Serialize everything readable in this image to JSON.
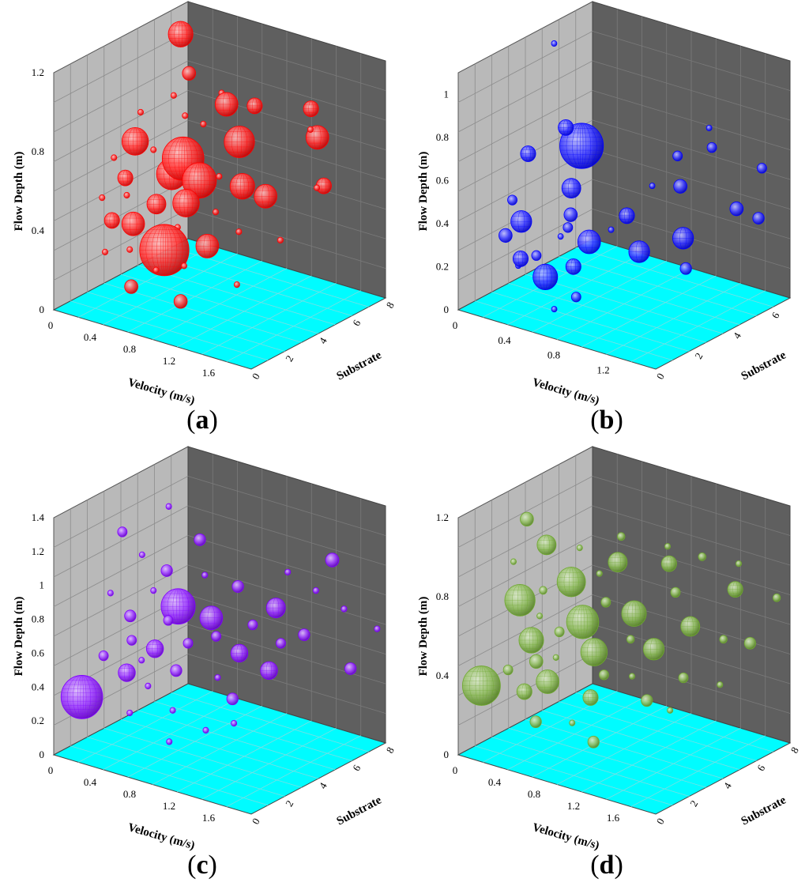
{
  "chart_data": [
    {
      "type": "scatter",
      "panel": "a",
      "caption_letter": "a",
      "bubble_color": "#ff0000",
      "xlabel": "Velocity (m/s)",
      "ylabel": "Flow Depth (m)",
      "zlabel": "Substrate",
      "x_range": [
        0,
        2.0
      ],
      "y_range": [
        0,
        1.2
      ],
      "z_range": [
        0,
        8
      ],
      "x_ticks": [
        "0",
        "0.4",
        "0.8",
        "1.2",
        "1.6"
      ],
      "y_ticks": [
        "0",
        "0.4",
        "0.8",
        "1.2"
      ],
      "z_ticks": [
        "0",
        "2",
        "4",
        "6",
        "8"
      ],
      "points": [
        {
          "v": 0.35,
          "d": 1.2,
          "s": 5.5,
          "r": 1.3
        },
        {
          "v": 0.52,
          "d": 1.05,
          "s": 5.0,
          "r": 0.7
        },
        {
          "v": 0.95,
          "d": 0.4,
          "s": 1.0,
          "r": 2.6
        },
        {
          "v": 0.8,
          "d": 0.75,
          "s": 3.0,
          "r": 2.2
        },
        {
          "v": 1.05,
          "d": 0.7,
          "s": 2.5,
          "r": 1.8
        },
        {
          "v": 0.6,
          "d": 0.62,
          "s": 3.5,
          "r": 1.6
        },
        {
          "v": 1.2,
          "d": 0.85,
          "s": 4.0,
          "r": 1.6
        },
        {
          "v": 0.4,
          "d": 0.8,
          "s": 2.5,
          "r": 1.4
        },
        {
          "v": 1.4,
          "d": 0.7,
          "s": 3.0,
          "r": 1.3
        },
        {
          "v": 1.0,
          "d": 0.6,
          "s": 2.0,
          "r": 1.4
        },
        {
          "v": 1.55,
          "d": 0.65,
          "s": 3.5,
          "r": 1.2
        },
        {
          "v": 0.55,
          "d": 0.45,
          "s": 1.5,
          "r": 1.2
        },
        {
          "v": 1.3,
          "d": 0.45,
          "s": 1.5,
          "r": 1.2
        },
        {
          "v": 0.9,
          "d": 0.95,
          "s": 5.0,
          "r": 1.2
        },
        {
          "v": 1.65,
          "d": 0.85,
          "s": 6.0,
          "r": 1.2
        },
        {
          "v": 1.5,
          "d": 0.95,
          "s": 6.5,
          "r": 0.8
        },
        {
          "v": 1.8,
          "d": 0.65,
          "s": 5.5,
          "r": 0.8
        },
        {
          "v": 0.7,
          "d": 0.2,
          "s": 0.5,
          "r": 0.7
        },
        {
          "v": 1.2,
          "d": 0.2,
          "s": 0.5,
          "r": 0.7
        },
        {
          "v": 0.25,
          "d": 0.4,
          "s": 2.0,
          "r": 0.8
        },
        {
          "v": 0.3,
          "d": 0.6,
          "s": 2.5,
          "r": 0.8
        },
        {
          "v": 0.7,
          "d": 0.55,
          "s": 2.0,
          "r": 1.0
        },
        {
          "v": 1.1,
          "d": 0.95,
          "s": 5.5,
          "r": 0.8
        },
        {
          "v": 0.1,
          "d": 0.65,
          "s": 3.0,
          "r": 0.3
        },
        {
          "v": 0.2,
          "d": 0.85,
          "s": 4.0,
          "r": 0.3
        },
        {
          "v": 0.45,
          "d": 0.95,
          "s": 4.5,
          "r": 0.3
        },
        {
          "v": 0.65,
          "d": 0.9,
          "s": 4.0,
          "r": 0.3
        },
        {
          "v": 0.85,
          "d": 1.0,
          "s": 5.0,
          "r": 0.3
        },
        {
          "v": 1.0,
          "d": 0.5,
          "s": 1.5,
          "r": 0.3
        },
        {
          "v": 1.3,
          "d": 0.6,
          "s": 2.0,
          "r": 0.3
        },
        {
          "v": 1.45,
          "d": 0.5,
          "s": 2.5,
          "r": 0.3
        },
        {
          "v": 1.7,
          "d": 0.45,
          "s": 3.5,
          "r": 0.3
        },
        {
          "v": 1.9,
          "d": 0.7,
          "s": 4.5,
          "r": 0.3
        },
        {
          "v": 0.15,
          "d": 0.5,
          "s": 2.0,
          "r": 0.3
        },
        {
          "v": 0.35,
          "d": 0.3,
          "s": 1.0,
          "r": 0.3
        },
        {
          "v": 0.5,
          "d": 0.75,
          "s": 3.0,
          "r": 0.3
        },
        {
          "v": 0.75,
          "d": 0.85,
          "s": 4.5,
          "r": 0.3
        },
        {
          "v": 1.15,
          "d": 0.35,
          "s": 1.0,
          "r": 0.3
        },
        {
          "v": 1.6,
          "d": 0.3,
          "s": 1.5,
          "r": 0.3
        },
        {
          "v": 0.9,
          "d": 0.3,
          "s": 0.8,
          "r": 0.3
        },
        {
          "v": 0.4,
          "d": 0.55,
          "s": 2.0,
          "r": 0.3
        },
        {
          "v": 1.25,
          "d": 0.75,
          "s": 2.5,
          "r": 0.3
        },
        {
          "v": 1.75,
          "d": 0.95,
          "s": 5.0,
          "r": 0.3
        },
        {
          "v": 0.6,
          "d": 0.35,
          "s": 1.0,
          "r": 0.3
        }
      ]
    },
    {
      "type": "scatter",
      "panel": "b",
      "caption_letter": "b",
      "bubble_color": "#0000ff",
      "xlabel": "Velocity (m/s)",
      "ylabel": "Flow Depth (m)",
      "zlabel": "Substrate",
      "x_range": [
        0,
        1.6
      ],
      "y_range": [
        0,
        1.1
      ],
      "z_range": [
        0,
        7
      ],
      "x_ticks": [
        "0",
        "0.4",
        "0.8",
        "1.2"
      ],
      "y_ticks": [
        "0",
        "0.2",
        "0.4",
        "0.6",
        "0.8",
        "1"
      ],
      "z_ticks": [
        "0",
        "2",
        "4",
        "6"
      ],
      "points": [
        {
          "v": 0.3,
          "d": 0.6,
          "s": 4.5,
          "r": 2.3
        },
        {
          "v": 0.55,
          "d": 0.2,
          "s": 1.0,
          "r": 1.3
        },
        {
          "v": 0.75,
          "d": 0.35,
          "s": 2.0,
          "r": 1.2
        },
        {
          "v": 0.2,
          "d": 0.35,
          "s": 2.0,
          "r": 1.1
        },
        {
          "v": 1.0,
          "d": 0.3,
          "s": 3.0,
          "r": 1.1
        },
        {
          "v": 1.2,
          "d": 0.35,
          "s": 4.0,
          "r": 1.1
        },
        {
          "v": 0.45,
          "d": 0.5,
          "s": 3.0,
          "r": 1.0
        },
        {
          "v": 0.1,
          "d": 0.6,
          "s": 3.0,
          "r": 0.8
        },
        {
          "v": 0.25,
          "d": 0.7,
          "s": 4.0,
          "r": 0.8
        },
        {
          "v": 1.4,
          "d": 0.45,
          "s": 5.5,
          "r": 0.7
        },
        {
          "v": 0.7,
          "d": 0.25,
          "s": 1.5,
          "r": 0.8
        },
        {
          "v": 0.9,
          "d": 0.45,
          "s": 3.0,
          "r": 0.8
        },
        {
          "v": 1.1,
          "d": 0.55,
          "s": 4.5,
          "r": 0.7
        },
        {
          "v": 0.35,
          "d": 0.25,
          "s": 1.0,
          "r": 0.8
        },
        {
          "v": 0.15,
          "d": 0.3,
          "s": 1.5,
          "r": 0.7
        },
        {
          "v": 0.6,
          "d": 0.45,
          "s": 2.0,
          "r": 0.7
        },
        {
          "v": 1.3,
          "d": 0.25,
          "s": 3.5,
          "r": 0.6
        },
        {
          "v": 1.5,
          "d": 0.4,
          "s": 6.0,
          "r": 0.6
        },
        {
          "v": 0.05,
          "d": 0.4,
          "s": 2.5,
          "r": 0.5
        },
        {
          "v": 0.5,
          "d": 0.35,
          "s": 2.5,
          "r": 0.5
        },
        {
          "v": 0.8,
          "d": 0.15,
          "s": 1.0,
          "r": 0.5
        },
        {
          "v": 1.0,
          "d": 0.65,
          "s": 5.0,
          "r": 0.5
        },
        {
          "v": 1.2,
          "d": 0.7,
          "s": 5.5,
          "r": 0.5
        },
        {
          "v": 0.4,
          "d": 0.25,
          "s": 1.5,
          "r": 0.5
        },
        {
          "v": 1.45,
          "d": 0.6,
          "s": 6.5,
          "r": 0.5
        },
        {
          "v": 0.0,
          "d": 1.0,
          "s": 5.0,
          "r": 0.25
        },
        {
          "v": 0.7,
          "d": 0.1,
          "s": 0.5,
          "r": 0.25
        },
        {
          "v": 1.1,
          "d": 0.75,
          "s": 6.0,
          "r": 0.25
        },
        {
          "v": 0.3,
          "d": 0.2,
          "s": 1.2,
          "r": 0.25
        },
        {
          "v": 0.85,
          "d": 0.4,
          "s": 2.5,
          "r": 0.25
        },
        {
          "v": 0.55,
          "d": 0.35,
          "s": 1.8,
          "r": 0.25
        },
        {
          "v": 0.95,
          "d": 0.55,
          "s": 4.0,
          "r": 0.25
        }
      ]
    },
    {
      "type": "scatter",
      "panel": "c",
      "caption_letter": "c",
      "bubble_color": "#7f00ff",
      "xlabel": "Velocity (m/s)",
      "ylabel": "Flow Depth (m)",
      "zlabel": "Substrate",
      "x_range": [
        0,
        2.0
      ],
      "y_range": [
        0,
        1.4
      ],
      "z_range": [
        0,
        8
      ],
      "x_ticks": [
        "0",
        "0.4",
        "0.8",
        "1.2",
        "1.6"
      ],
      "y_ticks": [
        "0",
        "0.2",
        "0.4",
        "0.6",
        "0.8",
        "1",
        "1.2",
        "1.4"
      ],
      "z_ticks": [
        "0",
        "2",
        "4",
        "6",
        "8"
      ],
      "points": [
        {
          "v": 0.2,
          "d": 0.35,
          "s": 0.5,
          "r": 2.2
        },
        {
          "v": 0.75,
          "d": 0.85,
          "s": 3.0,
          "r": 1.8
        },
        {
          "v": 1.0,
          "d": 0.8,
          "s": 3.5,
          "r": 1.2
        },
        {
          "v": 1.4,
          "d": 0.85,
          "s": 5.0,
          "r": 1.0
        },
        {
          "v": 1.5,
          "d": 0.55,
          "s": 4.0,
          "r": 0.9
        },
        {
          "v": 0.6,
          "d": 0.6,
          "s": 2.5,
          "r": 0.9
        },
        {
          "v": 0.4,
          "d": 0.45,
          "s": 2.0,
          "r": 0.9
        },
        {
          "v": 1.2,
          "d": 0.6,
          "s": 4.0,
          "r": 0.9
        },
        {
          "v": 1.8,
          "d": 1.15,
          "s": 6.0,
          "r": 0.7
        },
        {
          "v": 0.8,
          "d": 1.2,
          "s": 4.0,
          "r": 0.6
        },
        {
          "v": 0.1,
          "d": 1.15,
          "s": 3.5,
          "r": 0.5
        },
        {
          "v": 0.35,
          "d": 0.75,
          "s": 2.5,
          "r": 0.6
        },
        {
          "v": 0.55,
          "d": 1.0,
          "s": 3.5,
          "r": 0.6
        },
        {
          "v": 0.9,
          "d": 0.55,
          "s": 2.0,
          "r": 0.6
        },
        {
          "v": 1.1,
          "d": 0.95,
          "s": 4.5,
          "r": 0.6
        },
        {
          "v": 1.3,
          "d": 0.4,
          "s": 3.0,
          "r": 0.6
        },
        {
          "v": 1.6,
          "d": 0.7,
          "s": 5.5,
          "r": 0.6
        },
        {
          "v": 1.9,
          "d": 0.5,
          "s": 6.5,
          "r": 0.6
        },
        {
          "v": 0.25,
          "d": 0.55,
          "s": 1.5,
          "r": 0.5
        },
        {
          "v": 0.45,
          "d": 0.65,
          "s": 2.0,
          "r": 0.5
        },
        {
          "v": 0.65,
          "d": 0.75,
          "s": 3.0,
          "r": 0.5
        },
        {
          "v": 0.85,
          "d": 0.65,
          "s": 3.0,
          "r": 0.5
        },
        {
          "v": 1.05,
          "d": 0.7,
          "s": 3.5,
          "r": 0.5
        },
        {
          "v": 1.25,
          "d": 0.75,
          "s": 4.5,
          "r": 0.5
        },
        {
          "v": 1.45,
          "d": 0.65,
          "s": 5.0,
          "r": 0.5
        },
        {
          "v": 0.15,
          "d": 0.85,
          "s": 2.5,
          "r": 0.3
        },
        {
          "v": 0.3,
          "d": 1.05,
          "s": 3.5,
          "r": 0.3
        },
        {
          "v": 0.5,
          "d": 0.9,
          "s": 3.0,
          "r": 0.3
        },
        {
          "v": 0.7,
          "d": 0.45,
          "s": 1.5,
          "r": 0.3
        },
        {
          "v": 0.95,
          "d": 0.35,
          "s": 1.5,
          "r": 0.3
        },
        {
          "v": 1.15,
          "d": 0.5,
          "s": 3.0,
          "r": 0.3
        },
        {
          "v": 1.35,
          "d": 1.0,
          "s": 6.0,
          "r": 0.3
        },
        {
          "v": 1.55,
          "d": 0.9,
          "s": 6.5,
          "r": 0.3
        },
        {
          "v": 1.75,
          "d": 0.8,
          "s": 7.0,
          "r": 0.3
        },
        {
          "v": 2.0,
          "d": 0.7,
          "s": 7.5,
          "r": 0.3
        },
        {
          "v": 0.6,
          "d": 0.3,
          "s": 1.0,
          "r": 0.3
        },
        {
          "v": 1.0,
          "d": 0.2,
          "s": 1.0,
          "r": 0.3
        },
        {
          "v": 1.4,
          "d": 0.3,
          "s": 2.5,
          "r": 0.3
        },
        {
          "v": 0.4,
          "d": 1.3,
          "s": 4.5,
          "r": 0.3
        },
        {
          "v": 0.85,
          "d": 1.0,
          "s": 4.0,
          "r": 0.3
        },
        {
          "v": 1.2,
          "d": 0.25,
          "s": 2.0,
          "r": 0.3
        },
        {
          "v": 0.55,
          "d": 0.55,
          "s": 2.0,
          "r": 0.3
        }
      ]
    },
    {
      "type": "scatter",
      "panel": "d",
      "caption_letter": "d",
      "bubble_color": "#6fa830",
      "xlabel": "Velocity (m/s)",
      "ylabel": "Flow Depth (m)",
      "zlabel": "Substrate",
      "x_range": [
        0,
        2.0
      ],
      "y_range": [
        0,
        1.2
      ],
      "z_range": [
        0,
        8
      ],
      "x_ticks": [
        "0",
        "0.4",
        "0.8",
        "1.2",
        "1.6"
      ],
      "y_ticks": [
        "0",
        "0.4",
        "0.8",
        "1.2"
      ],
      "z_ticks": [
        "0",
        "2",
        "4",
        "6",
        "8"
      ],
      "points": [
        {
          "v": 0.15,
          "d": 0.35,
          "s": 0.5,
          "r": 2.0
        },
        {
          "v": 0.2,
          "d": 0.7,
          "s": 2.5,
          "r": 1.6
        },
        {
          "v": 0.75,
          "d": 0.65,
          "s": 3.0,
          "r": 1.7
        },
        {
          "v": 0.55,
          "d": 0.8,
          "s": 3.5,
          "r": 1.5
        },
        {
          "v": 0.95,
          "d": 0.55,
          "s": 2.5,
          "r": 1.4
        },
        {
          "v": 0.4,
          "d": 0.55,
          "s": 2.0,
          "r": 1.3
        },
        {
          "v": 1.1,
          "d": 0.7,
          "s": 4.0,
          "r": 1.3
        },
        {
          "v": 0.65,
          "d": 0.4,
          "s": 1.5,
          "r": 1.2
        },
        {
          "v": 1.3,
          "d": 0.55,
          "s": 4.0,
          "r": 1.1
        },
        {
          "v": 0.3,
          "d": 0.95,
          "s": 3.5,
          "r": 1.0
        },
        {
          "v": 0.85,
          "d": 0.9,
          "s": 4.5,
          "r": 1.0
        },
        {
          "v": 1.5,
          "d": 0.65,
          "s": 5.0,
          "r": 1.0
        },
        {
          "v": 0.1,
          "d": 1.05,
          "s": 3.5,
          "r": 0.7
        },
        {
          "v": 0.5,
          "d": 0.35,
          "s": 1.0,
          "r": 0.8
        },
        {
          "v": 1.0,
          "d": 0.35,
          "s": 2.0,
          "r": 0.8
        },
        {
          "v": 1.2,
          "d": 0.9,
          "s": 5.5,
          "r": 0.8
        },
        {
          "v": 1.7,
          "d": 0.8,
          "s": 6.5,
          "r": 0.8
        },
        {
          "v": 1.85,
          "d": 0.55,
          "s": 6.5,
          "r": 0.6
        },
        {
          "v": 0.45,
          "d": 0.45,
          "s": 2.0,
          "r": 0.7
        },
        {
          "v": 0.7,
          "d": 0.25,
          "s": 0.5,
          "r": 0.6
        },
        {
          "v": 1.2,
          "d": 0.2,
          "s": 1.0,
          "r": 0.6
        },
        {
          "v": 1.4,
          "d": 0.35,
          "s": 3.0,
          "r": 0.6
        },
        {
          "v": 1.6,
          "d": 0.45,
          "s": 4.0,
          "r": 0.5
        },
        {
          "v": 0.25,
          "d": 0.4,
          "s": 1.5,
          "r": 0.5
        },
        {
          "v": 0.6,
          "d": 0.6,
          "s": 2.5,
          "r": 0.5
        },
        {
          "v": 0.9,
          "d": 0.75,
          "s": 3.5,
          "r": 0.5
        },
        {
          "v": 1.05,
          "d": 0.45,
          "s": 2.5,
          "r": 0.5
        },
        {
          "v": 1.35,
          "d": 0.8,
          "s": 5.0,
          "r": 0.5
        },
        {
          "v": 0.35,
          "d": 0.75,
          "s": 3.0,
          "r": 0.4
        },
        {
          "v": 0.8,
          "d": 1.0,
          "s": 5.0,
          "r": 0.4
        },
        {
          "v": 1.15,
          "d": 0.6,
          "s": 3.5,
          "r": 0.4
        },
        {
          "v": 1.45,
          "d": 0.95,
          "s": 6.0,
          "r": 0.4
        },
        {
          "v": 1.75,
          "d": 0.6,
          "s": 5.5,
          "r": 0.4
        },
        {
          "v": 1.95,
          "d": 0.75,
          "s": 7.5,
          "r": 0.4
        },
        {
          "v": 0.05,
          "d": 0.85,
          "s": 3.0,
          "r": 0.3
        },
        {
          "v": 0.2,
          "d": 0.3,
          "s": 1.0,
          "r": 0.3
        },
        {
          "v": 0.55,
          "d": 0.95,
          "s": 4.0,
          "r": 0.3
        },
        {
          "v": 0.95,
          "d": 0.25,
          "s": 1.2,
          "r": 0.3
        },
        {
          "v": 1.25,
          "d": 0.45,
          "s": 3.0,
          "r": 0.3
        },
        {
          "v": 1.55,
          "d": 0.3,
          "s": 3.5,
          "r": 0.3
        },
        {
          "v": 1.65,
          "d": 0.9,
          "s": 7.0,
          "r": 0.3
        },
        {
          "v": 0.75,
          "d": 0.85,
          "s": 4.0,
          "r": 0.3
        },
        {
          "v": 1.1,
          "d": 0.95,
          "s": 6.0,
          "r": 0.3
        },
        {
          "v": 0.4,
          "d": 0.65,
          "s": 2.5,
          "r": 0.3
        },
        {
          "v": 0.65,
          "d": 0.5,
          "s": 2.0,
          "r": 0.3
        },
        {
          "v": 1.8,
          "d": 0.4,
          "s": 5.0,
          "r": 0.3
        }
      ]
    }
  ]
}
